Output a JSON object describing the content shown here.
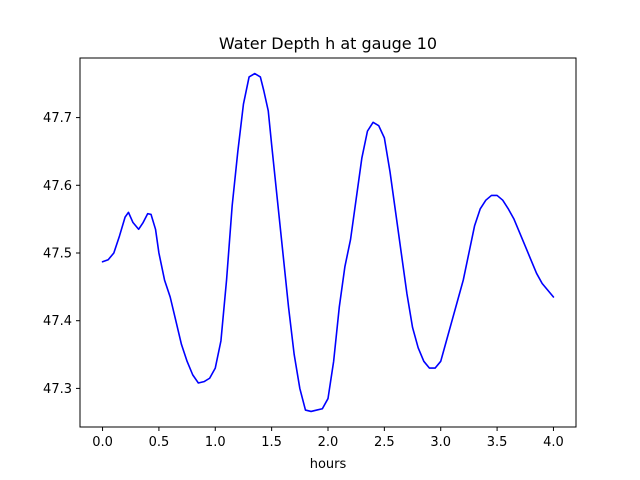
{
  "chart_data": {
    "type": "line",
    "title": "Water Depth h at gauge 10",
    "xlabel": "hours",
    "ylabel": "",
    "xlim": [
      -0.2,
      4.2
    ],
    "ylim": [
      47.243,
      47.788
    ],
    "x_ticks": [
      0.0,
      0.5,
      1.0,
      1.5,
      2.0,
      2.5,
      3.0,
      3.5,
      4.0
    ],
    "x_tick_labels": [
      "0.0",
      "0.5",
      "1.0",
      "1.5",
      "2.0",
      "2.5",
      "3.0",
      "3.5",
      "4.0"
    ],
    "y_ticks": [
      47.3,
      47.4,
      47.5,
      47.6,
      47.7
    ],
    "y_tick_labels": [
      "47.3",
      "47.4",
      "47.5",
      "47.6",
      "47.7"
    ],
    "grid": false,
    "line_color": "#0000ff",
    "series": [
      {
        "x": [
          0.0,
          0.05,
          0.1,
          0.15,
          0.2,
          0.23,
          0.27,
          0.32,
          0.36,
          0.4,
          0.43,
          0.47,
          0.5,
          0.55,
          0.6,
          0.65,
          0.7,
          0.75,
          0.8,
          0.85,
          0.9,
          0.95,
          1.0,
          1.05,
          1.1,
          1.15,
          1.2,
          1.25,
          1.3,
          1.35,
          1.4,
          1.43,
          1.47,
          1.5,
          1.55,
          1.6,
          1.65,
          1.7,
          1.75,
          1.8,
          1.85,
          1.9,
          1.95,
          2.0,
          2.05,
          2.1,
          2.15,
          2.2,
          2.25,
          2.3,
          2.35,
          2.4,
          2.45,
          2.5,
          2.55,
          2.6,
          2.65,
          2.7,
          2.75,
          2.8,
          2.85,
          2.9,
          2.95,
          3.0,
          3.05,
          3.1,
          3.15,
          3.2,
          3.25,
          3.3,
          3.35,
          3.4,
          3.45,
          3.5,
          3.55,
          3.6,
          3.65,
          3.7,
          3.75,
          3.8,
          3.85,
          3.9,
          3.95,
          4.0
        ],
        "y": [
          47.487,
          47.49,
          47.5,
          47.525,
          47.553,
          47.56,
          47.545,
          47.535,
          47.545,
          47.558,
          47.557,
          47.535,
          47.5,
          47.46,
          47.435,
          47.4,
          47.365,
          47.34,
          47.32,
          47.308,
          47.31,
          47.315,
          47.33,
          47.37,
          47.46,
          47.57,
          47.65,
          47.72,
          47.76,
          47.765,
          47.76,
          47.74,
          47.71,
          47.66,
          47.58,
          47.5,
          47.42,
          47.35,
          47.3,
          47.268,
          47.266,
          47.268,
          47.27,
          47.285,
          47.34,
          47.42,
          47.48,
          47.52,
          47.58,
          47.64,
          47.68,
          47.693,
          47.688,
          47.67,
          47.62,
          47.56,
          47.5,
          47.44,
          47.39,
          47.36,
          47.34,
          47.33,
          47.33,
          47.34,
          47.37,
          47.4,
          47.43,
          47.46,
          47.5,
          47.54,
          47.565,
          47.578,
          47.585,
          47.585,
          47.578,
          47.565,
          47.55,
          47.53,
          47.51,
          47.49,
          47.47,
          47.455,
          47.445,
          47.435
        ]
      }
    ]
  }
}
